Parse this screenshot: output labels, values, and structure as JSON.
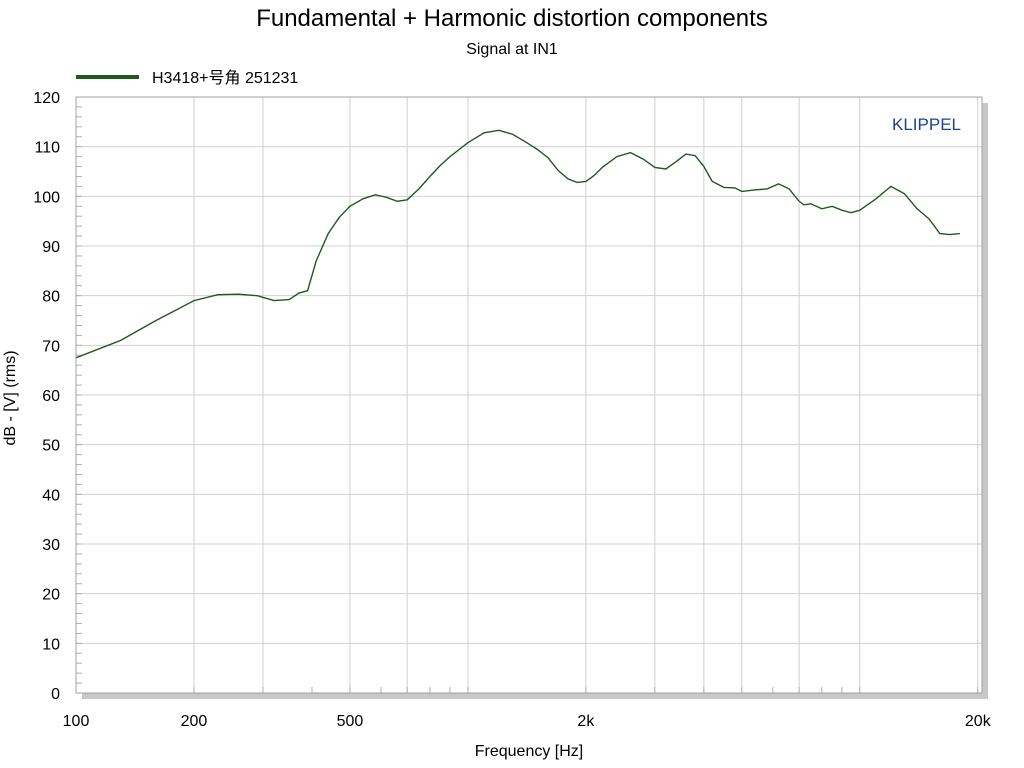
{
  "chart_data": {
    "type": "line",
    "title": "Fundamental + Harmonic distortion components",
    "subtitle": "Signal at IN1",
    "xlabel": "Frequency [Hz]",
    "ylabel": "dB - [V]  (rms)",
    "watermark": "KLIPPEL",
    "x_scale": "log",
    "xlim": [
      100,
      20500
    ],
    "ylim": [
      0,
      120
    ],
    "grid": true,
    "legend_position": "top-left",
    "x_tick_values": [
      100,
      200,
      500,
      2000,
      20000
    ],
    "x_tick_labels": [
      "100",
      "200",
      "500",
      "2k",
      "20k"
    ],
    "x_grid_values": [
      200,
      300,
      500,
      700,
      1000,
      2000,
      3000,
      4000,
      5000,
      7000,
      10000,
      20000
    ],
    "y_tick_values": [
      0,
      10,
      20,
      30,
      40,
      50,
      60,
      70,
      80,
      90,
      100,
      110,
      120
    ],
    "y_tick_labels": [
      "0",
      "10",
      "20",
      "30",
      "40",
      "50",
      "60",
      "70",
      "80",
      "90",
      "100",
      "110",
      "120"
    ],
    "series": [
      {
        "name": "H3418+号角 251231",
        "color": "#1e5a1e",
        "x": [
          100,
          130,
          160,
          200,
          230,
          260,
          290,
          320,
          350,
          370,
          390,
          410,
          440,
          470,
          500,
          540,
          580,
          620,
          660,
          700,
          750,
          800,
          850,
          900,
          1000,
          1100,
          1200,
          1300,
          1400,
          1500,
          1600,
          1700,
          1800,
          1900,
          2000,
          2100,
          2200,
          2400,
          2600,
          2800,
          3000,
          3200,
          3400,
          3600,
          3800,
          4000,
          4200,
          4500,
          4800,
          5000,
          5400,
          5800,
          6200,
          6600,
          7000,
          7200,
          7500,
          8000,
          8500,
          9000,
          9500,
          10000,
          11000,
          12000,
          13000,
          14000,
          15000,
          15500,
          16000,
          17000,
          18000,
          19000,
          19500,
          20000,
          20500
        ],
        "y": [
          67.5,
          71,
          75,
          79,
          80.2,
          80.3,
          80,
          79,
          79.2,
          80.5,
          81,
          87,
          92.5,
          95.8,
          98,
          99.5,
          100.3,
          99.8,
          99,
          99.3,
          101.5,
          104,
          106.2,
          108,
          110.8,
          112.8,
          113.3,
          112.5,
          111,
          109.5,
          107.8,
          105.2,
          103.5,
          102.8,
          103,
          104.2,
          105.8,
          108,
          108.8,
          107.5,
          105.8,
          105.5,
          107,
          108.5,
          108.2,
          106,
          103,
          101.8,
          101.7,
          101,
          101.3,
          101.5,
          102.5,
          101.5,
          99,
          98.3,
          98.5,
          97.5,
          98,
          97.2,
          96.7,
          97.2,
          99.5,
          102,
          100.5,
          97.5,
          95.5,
          94,
          92.5,
          92.3,
          92.5,
          null,
          null,
          null,
          null
        ]
      }
    ]
  }
}
